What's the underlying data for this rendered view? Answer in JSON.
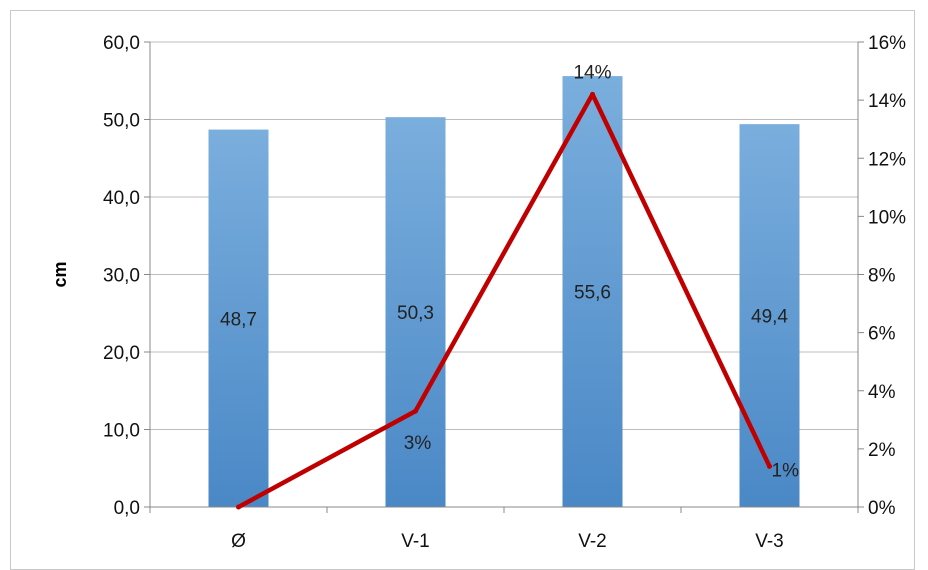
{
  "chart_data": {
    "type": "bar",
    "categories": [
      "Ø",
      "V-1",
      "V-2",
      "V-3"
    ],
    "ylabel": "cm",
    "ylim": [
      0,
      60
    ],
    "y_ticks": [
      "0,0",
      "10,0",
      "20,0",
      "30,0",
      "40,0",
      "50,0",
      "60,0"
    ],
    "y2lim": [
      0,
      0.16
    ],
    "y2_ticks": [
      "0%",
      "2%",
      "4%",
      "6%",
      "8%",
      "10%",
      "12%",
      "14%",
      "16%"
    ],
    "grid": true,
    "series": [
      {
        "kind": "bar",
        "axis": "left",
        "values": [
          48.7,
          50.3,
          55.6,
          49.4
        ],
        "labels": [
          "48,7",
          "50,3",
          "55,6",
          "49,4"
        ],
        "color": "#5b9bd5"
      },
      {
        "kind": "line",
        "axis": "right",
        "values": [
          0.0,
          0.033,
          0.142,
          0.014
        ],
        "labels": [
          "",
          "3%",
          "14%",
          "1%"
        ],
        "color": "#c00000"
      }
    ]
  }
}
